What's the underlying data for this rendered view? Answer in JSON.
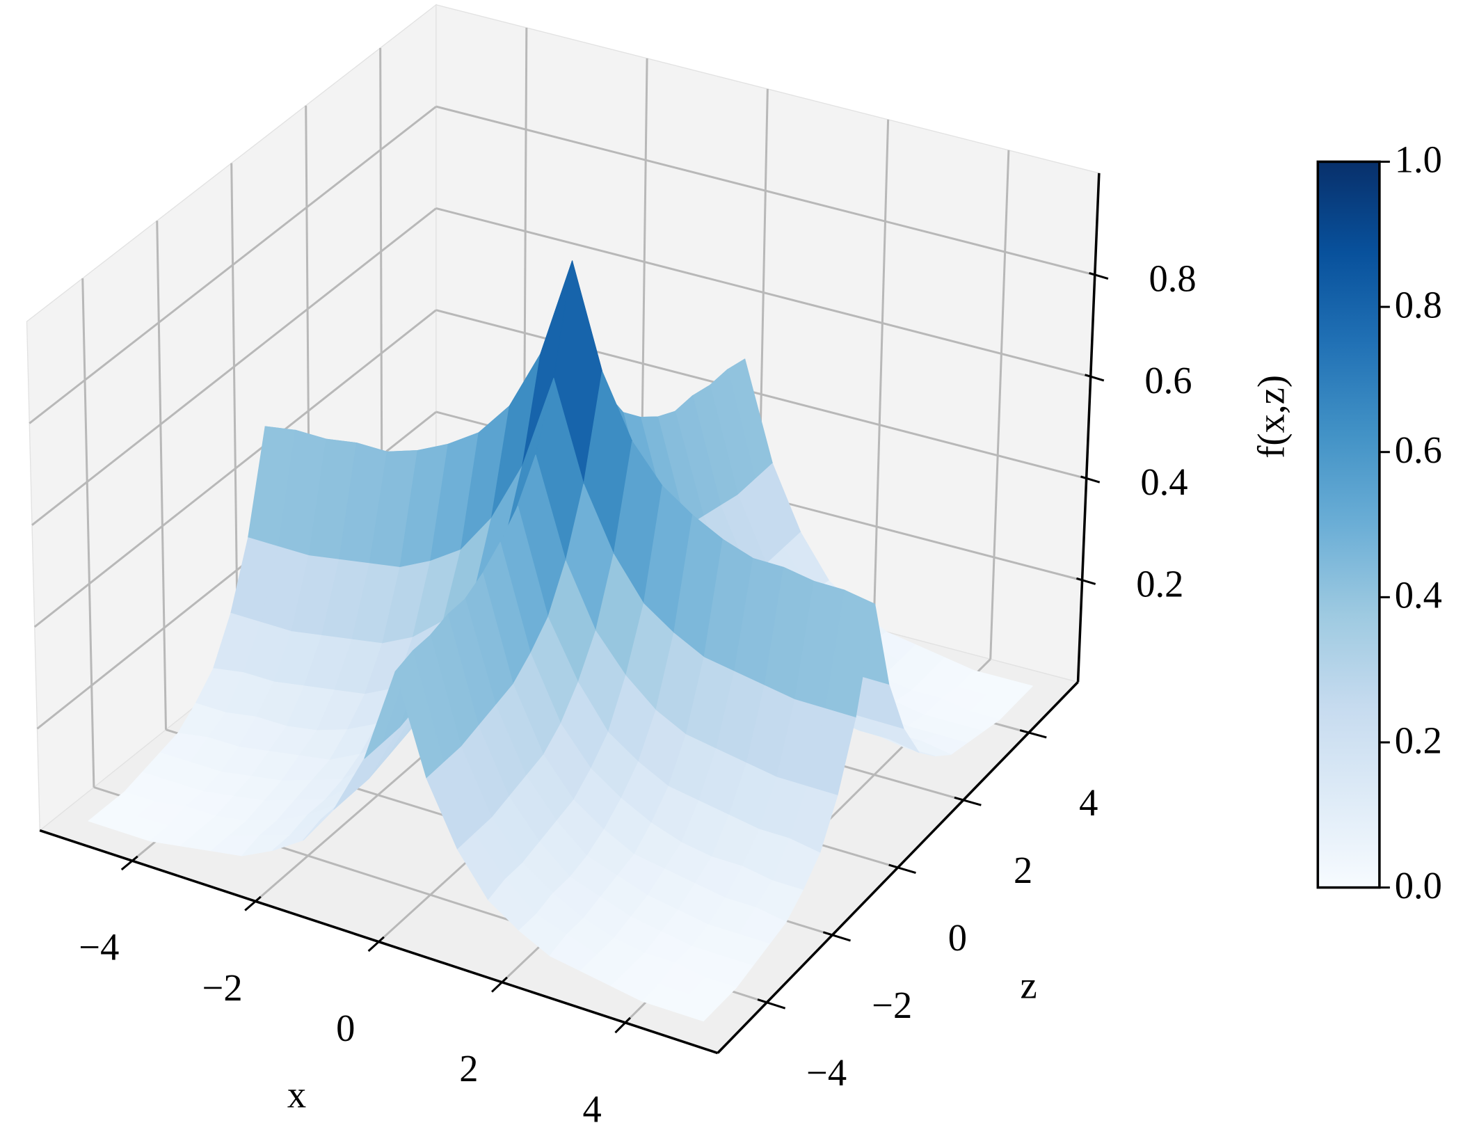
{
  "chart_data": {
    "type": "surface",
    "xlabel": "x",
    "zlabel": "z",
    "x": [
      -5,
      -4.5,
      -4,
      -3.5,
      -3,
      -2.5,
      -2,
      -1.5,
      -1,
      -0.5,
      0,
      0.5,
      1,
      1.5,
      2,
      2.5,
      3,
      3.5,
      4,
      4.5,
      5
    ],
    "z": [
      -5,
      -4.5,
      -4,
      -3.5,
      -3,
      -2.5,
      -2,
      -1.5,
      -1,
      -0.5,
      0,
      0.5,
      1,
      1.5,
      2,
      2.5,
      3,
      3.5,
      4,
      4.5,
      5
    ],
    "values": [
      [
        0.01,
        0.01,
        0.01,
        0.02,
        0.03,
        0.04,
        0.07,
        0.11,
        0.19,
        0.31,
        0.5,
        0.31,
        0.19,
        0.11,
        0.07,
        0.04,
        0.03,
        0.02,
        0.01,
        0.01,
        0.01
      ],
      [
        0.01,
        0.01,
        0.01,
        0.02,
        0.03,
        0.05,
        0.07,
        0.12,
        0.19,
        0.31,
        0.51,
        0.31,
        0.19,
        0.12,
        0.07,
        0.05,
        0.03,
        0.02,
        0.01,
        0.01,
        0.01
      ],
      [
        0.01,
        0.01,
        0.02,
        0.02,
        0.03,
        0.05,
        0.08,
        0.12,
        0.19,
        0.31,
        0.51,
        0.31,
        0.19,
        0.12,
        0.08,
        0.05,
        0.03,
        0.02,
        0.02,
        0.01,
        0.01
      ],
      [
        0.02,
        0.02,
        0.02,
        0.03,
        0.04,
        0.06,
        0.08,
        0.13,
        0.2,
        0.32,
        0.52,
        0.32,
        0.2,
        0.13,
        0.08,
        0.06,
        0.04,
        0.03,
        0.02,
        0.02,
        0.02
      ],
      [
        0.03,
        0.03,
        0.03,
        0.04,
        0.05,
        0.07,
        0.09,
        0.14,
        0.21,
        0.33,
        0.52,
        0.33,
        0.21,
        0.14,
        0.09,
        0.07,
        0.05,
        0.04,
        0.03,
        0.03,
        0.03
      ],
      [
        0.04,
        0.05,
        0.05,
        0.06,
        0.07,
        0.08,
        0.11,
        0.15,
        0.22,
        0.34,
        0.54,
        0.34,
        0.22,
        0.15,
        0.11,
        0.08,
        0.07,
        0.06,
        0.05,
        0.05,
        0.04
      ],
      [
        0.07,
        0.07,
        0.08,
        0.08,
        0.09,
        0.11,
        0.14,
        0.18,
        0.25,
        0.37,
        0.57,
        0.37,
        0.25,
        0.18,
        0.14,
        0.11,
        0.09,
        0.08,
        0.08,
        0.07,
        0.07
      ],
      [
        0.11,
        0.12,
        0.12,
        0.13,
        0.14,
        0.15,
        0.18,
        0.22,
        0.3,
        0.41,
        0.61,
        0.41,
        0.3,
        0.22,
        0.18,
        0.15,
        0.14,
        0.13,
        0.12,
        0.12,
        0.11
      ],
      [
        0.19,
        0.19,
        0.19,
        0.2,
        0.21,
        0.22,
        0.25,
        0.3,
        0.37,
        0.49,
        0.68,
        0.49,
        0.37,
        0.3,
        0.25,
        0.22,
        0.21,
        0.2,
        0.19,
        0.19,
        0.19
      ],
      [
        0.31,
        0.31,
        0.31,
        0.32,
        0.33,
        0.34,
        0.37,
        0.41,
        0.49,
        0.61,
        0.8,
        0.61,
        0.49,
        0.41,
        0.37,
        0.34,
        0.33,
        0.32,
        0.31,
        0.31,
        0.31
      ],
      [
        0.5,
        0.51,
        0.51,
        0.52,
        0.52,
        0.54,
        0.57,
        0.61,
        0.68,
        0.8,
        1.0,
        0.8,
        0.68,
        0.61,
        0.57,
        0.54,
        0.52,
        0.52,
        0.51,
        0.51,
        0.5
      ],
      [
        0.31,
        0.31,
        0.31,
        0.32,
        0.33,
        0.34,
        0.37,
        0.41,
        0.49,
        0.61,
        0.8,
        0.61,
        0.49,
        0.41,
        0.37,
        0.34,
        0.33,
        0.32,
        0.31,
        0.31,
        0.31
      ],
      [
        0.19,
        0.19,
        0.19,
        0.2,
        0.21,
        0.22,
        0.25,
        0.3,
        0.37,
        0.49,
        0.68,
        0.49,
        0.37,
        0.3,
        0.25,
        0.22,
        0.21,
        0.2,
        0.19,
        0.19,
        0.19
      ],
      [
        0.11,
        0.12,
        0.12,
        0.13,
        0.14,
        0.15,
        0.18,
        0.22,
        0.3,
        0.41,
        0.61,
        0.41,
        0.3,
        0.22,
        0.18,
        0.15,
        0.14,
        0.13,
        0.12,
        0.12,
        0.11
      ],
      [
        0.07,
        0.07,
        0.08,
        0.08,
        0.09,
        0.11,
        0.14,
        0.18,
        0.25,
        0.37,
        0.57,
        0.37,
        0.25,
        0.18,
        0.14,
        0.11,
        0.09,
        0.08,
        0.08,
        0.07,
        0.07
      ],
      [
        0.04,
        0.05,
        0.05,
        0.06,
        0.07,
        0.08,
        0.11,
        0.15,
        0.22,
        0.34,
        0.54,
        0.34,
        0.22,
        0.15,
        0.11,
        0.08,
        0.07,
        0.06,
        0.05,
        0.05,
        0.04
      ],
      [
        0.03,
        0.03,
        0.03,
        0.04,
        0.05,
        0.07,
        0.09,
        0.14,
        0.21,
        0.33,
        0.52,
        0.33,
        0.21,
        0.14,
        0.09,
        0.07,
        0.05,
        0.04,
        0.03,
        0.03,
        0.03
      ],
      [
        0.02,
        0.02,
        0.02,
        0.03,
        0.04,
        0.06,
        0.08,
        0.13,
        0.2,
        0.32,
        0.52,
        0.32,
        0.2,
        0.13,
        0.08,
        0.06,
        0.04,
        0.03,
        0.02,
        0.02,
        0.02
      ],
      [
        0.01,
        0.01,
        0.02,
        0.02,
        0.03,
        0.05,
        0.08,
        0.12,
        0.19,
        0.31,
        0.51,
        0.31,
        0.19,
        0.12,
        0.08,
        0.05,
        0.03,
        0.02,
        0.02,
        0.01,
        0.01
      ],
      [
        0.01,
        0.01,
        0.01,
        0.02,
        0.03,
        0.05,
        0.07,
        0.12,
        0.19,
        0.31,
        0.51,
        0.31,
        0.19,
        0.12,
        0.07,
        0.05,
        0.03,
        0.02,
        0.01,
        0.01,
        0.01
      ],
      [
        0.01,
        0.01,
        0.01,
        0.02,
        0.03,
        0.04,
        0.07,
        0.11,
        0.19,
        0.31,
        0.5,
        0.31,
        0.19,
        0.11,
        0.07,
        0.04,
        0.03,
        0.02,
        0.01,
        0.01,
        0.01
      ]
    ],
    "xlim": [
      -5.5,
      5.5
    ],
    "xticks": [
      {
        "value": -4,
        "label": "−4"
      },
      {
        "value": -2,
        "label": "−2"
      },
      0,
      2,
      4
    ],
    "zlim": [
      -5.5,
      5.5
    ],
    "zticks": [
      {
        "value": -4,
        "label": "−4"
      },
      {
        "value": -2,
        "label": "−2"
      },
      0,
      2,
      4
    ],
    "flim": [
      0,
      1
    ],
    "fticks": [
      0.2,
      0.4,
      0.6,
      0.8
    ],
    "grid": true,
    "colorbar": {
      "label": "f(x,z)",
      "lim": [
        0,
        1
      ],
      "ticks": [
        {
          "value": 0,
          "label": "0.0"
        },
        0.2,
        0.4,
        0.6,
        0.8,
        {
          "value": 1,
          "label": "1.0"
        }
      ],
      "colors": [
        "#f7fbff",
        "#deebf7",
        "#c6dbef",
        "#9ecae1",
        "#6baed6",
        "#4292c6",
        "#2171b5",
        "#08519c",
        "#08306b"
      ]
    }
  }
}
